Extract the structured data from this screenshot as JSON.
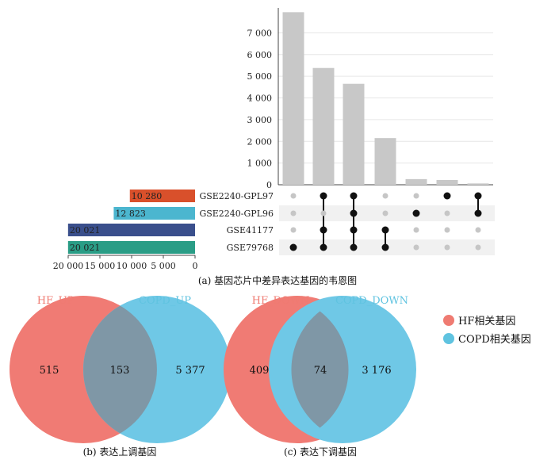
{
  "chart_data": [
    {
      "type": "bar",
      "subtype": "upset-intersections",
      "y_ticks": [
        "0",
        "1 000",
        "2 000",
        "3 000",
        "4 000",
        "5 000",
        "6 000",
        "7 000"
      ],
      "ylim": [
        0,
        8000
      ],
      "values": [
        7950,
        5380,
        4650,
        2150,
        260,
        220,
        60
      ],
      "intersections": [
        [
          "GSE79768"
        ],
        [
          "GSE2240-GPL97",
          "GSE41177",
          "GSE79768"
        ],
        [
          "GSE2240-GPL97",
          "GSE2240-GPL96",
          "GSE41177",
          "GSE79768"
        ],
        [
          "GSE41177",
          "GSE79768"
        ],
        [
          "GSE2240-GPL96"
        ],
        [
          "GSE2240-GPL97"
        ],
        [
          "GSE2240-GPL97",
          "GSE2240-GPL96"
        ]
      ],
      "bar_color": "#c8c8c8",
      "grid": true
    },
    {
      "type": "bar",
      "subtype": "upset-set-sizes",
      "orientation": "horizontal",
      "categories": [
        "GSE2240-GPL97",
        "GSE2240-GPL96",
        "GSE41177",
        "GSE79768"
      ],
      "values": [
        10280,
        12823,
        20021,
        20021
      ],
      "value_labels": [
        "10 280",
        "12 823",
        "20 021",
        "20 021"
      ],
      "colors": [
        "#d9502b",
        "#4bb6cf",
        "#3a4f8c",
        "#2a9d86"
      ],
      "x_ticks": [
        "20 000",
        "15 000",
        "10 000",
        "5 000",
        "0"
      ],
      "xlim": [
        0,
        20000
      ]
    },
    {
      "type": "venn",
      "sets": [
        "HF_UP",
        "COPD_UP"
      ],
      "values": {
        "left_only": "515",
        "overlap": "153",
        "right_only": "5 377"
      },
      "colors": [
        "#f07b74",
        "#6fc8e6"
      ]
    },
    {
      "type": "venn",
      "sets": [
        "HF_DOWN",
        "COPD_DOWN"
      ],
      "values": {
        "left_only": "409",
        "overlap": "74",
        "right_only": "3 176"
      },
      "colors": [
        "#f07b74",
        "#6fc8e6"
      ]
    }
  ],
  "captions": {
    "a": "(a) 基因芯片中差异表达基因的韦恩图",
    "b": "(b) 表达上调基因",
    "c": "(c) 表达下调基因"
  },
  "venn_b": {
    "title_left": "HF_UP",
    "title_right": "COPD_UP",
    "left": "515",
    "overlap": "153",
    "right": "5 377"
  },
  "venn_c": {
    "title_left": "HF_DOWN",
    "title_right": "COPD_DOWN",
    "left": "409",
    "overlap": "74",
    "right": "3 176"
  },
  "legend": [
    {
      "label": "HF相关基因",
      "color": "#ef7b72"
    },
    {
      "label": "COPD相关基因",
      "color": "#5fc3e0"
    }
  ],
  "colors": {
    "venn_left": "#f07b74",
    "venn_right": "#6fc8e6",
    "venn_overlap": "#7f97a6",
    "title_left": "#ef7b72",
    "title_right": "#5fc3e0"
  }
}
